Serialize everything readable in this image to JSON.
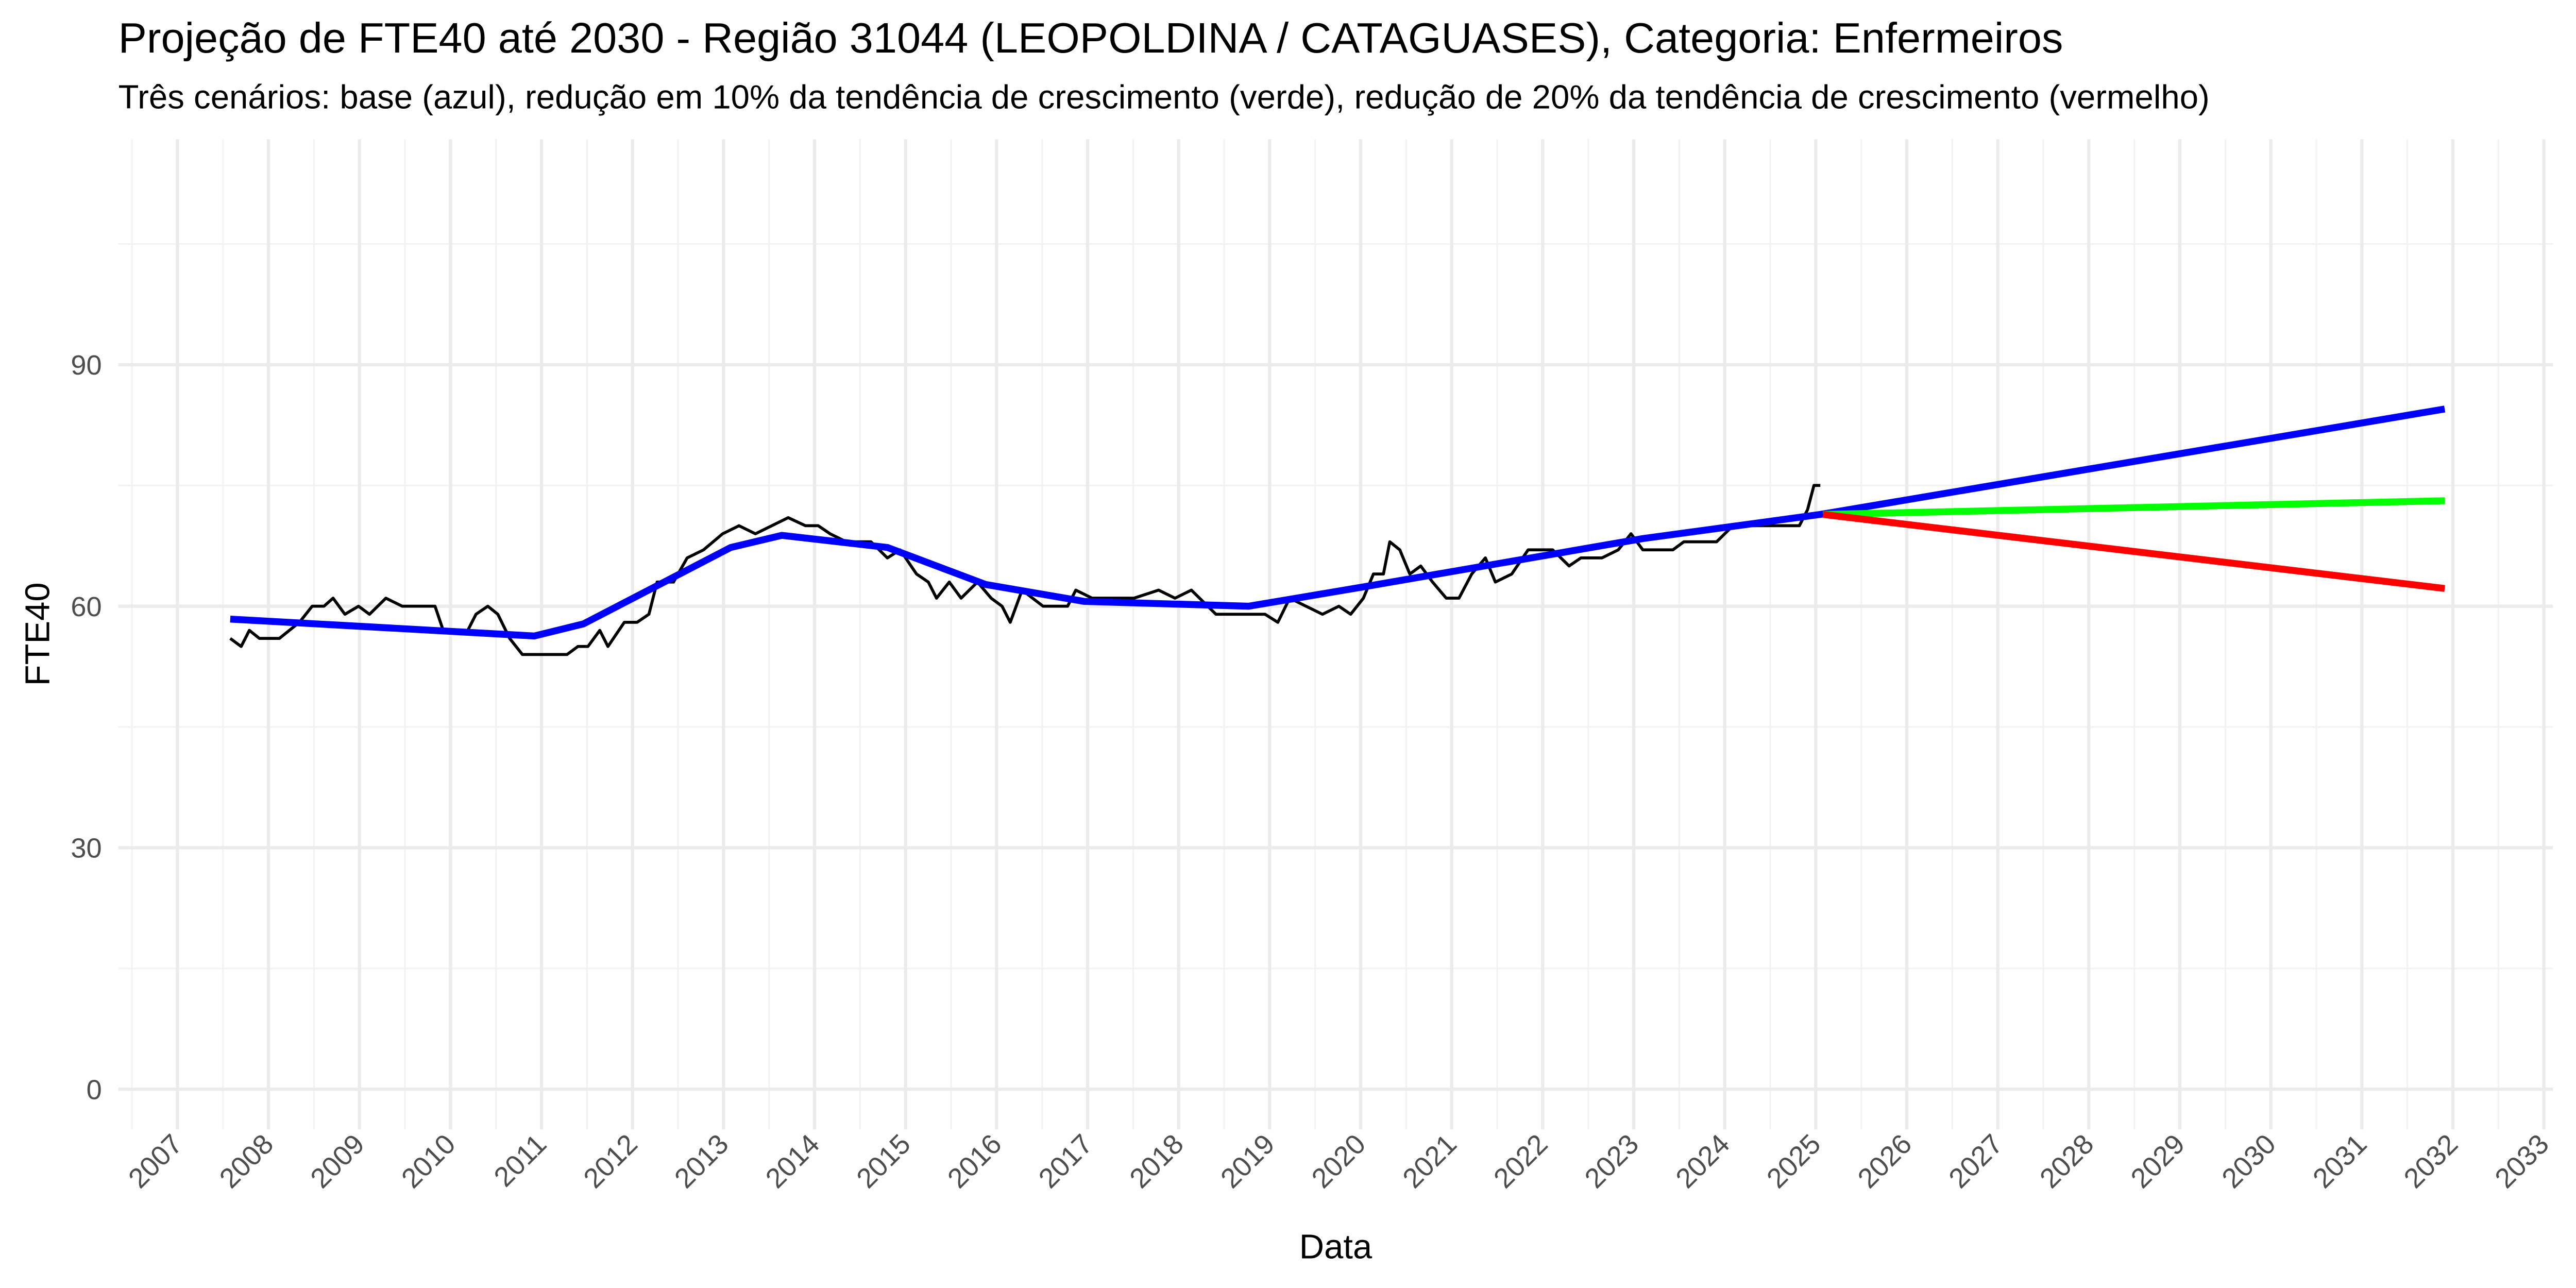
{
  "chart_data": {
    "type": "line",
    "title": "Projeção de FTE40 até 2030 - Região 31044 (LEOPOLDINA / CATAGUASES), Categoria: Enfermeiros",
    "subtitle": "Três cenários: base (azul), redução em 10% da tendência de crescimento (verde), redução de 20% da tendência de crescimento (vermelho)",
    "x_label": "Data",
    "y_label": "FTE40",
    "xlim": [
      2006.35,
      2033.1
    ],
    "xticks": [
      2007,
      2008,
      2009,
      2010,
      2011,
      2012,
      2013,
      2014,
      2015,
      2016,
      2017,
      2018,
      2019,
      2020,
      2021,
      2022,
      2023,
      2024,
      2025,
      2026,
      2027,
      2028,
      2029,
      2030,
      2031,
      2032,
      2033
    ],
    "ylim": [
      -5,
      118
    ],
    "yticks": [
      0,
      30,
      60,
      90
    ],
    "grid": true,
    "series": [
      {
        "color": "#000000",
        "x": [
          2007.58,
          2007.7,
          2007.79,
          2007.9,
          2008.12,
          2008.34,
          2008.48,
          2008.61,
          2008.71,
          2008.84,
          2008.99,
          2009.11,
          2009.29,
          2009.47,
          2009.83,
          2009.92,
          2010.19,
          2010.28,
          2010.41,
          2010.52,
          2010.65,
          2010.79,
          2011.28,
          2011.4,
          2011.51,
          2011.64,
          2011.73,
          2011.91,
          2012.05,
          2012.18,
          2012.27,
          2012.45,
          2012.6,
          2012.78,
          2012.99,
          2013.17,
          2013.35,
          2013.53,
          2013.71,
          2013.9,
          2014.04,
          2014.17,
          2014.35,
          2014.62,
          2014.8,
          2014.94,
          2015.12,
          2015.25,
          2015.34,
          2015.48,
          2015.61,
          2015.79,
          2015.94,
          2016.06,
          2016.15,
          2016.28,
          2016.51,
          2016.78,
          2016.87,
          2017.05,
          2017.51,
          2017.78,
          2017.96,
          2018.14,
          2018.41,
          2018.95,
          2019.09,
          2019.22,
          2019.4,
          2019.58,
          2019.76,
          2019.89,
          2020.03,
          2020.14,
          2020.25,
          2020.32,
          2020.43,
          2020.54,
          2020.66,
          2020.79,
          2020.94,
          2021.08,
          2021.22,
          2021.37,
          2021.48,
          2021.66,
          2021.84,
          2022.11,
          2022.29,
          2022.42,
          2022.65,
          2022.83,
          2022.97,
          2023.1,
          2023.43,
          2023.55,
          2023.91,
          2024.09,
          2024.45,
          2024.82,
          2024.91,
          2024.98,
          2025.05
        ],
        "values": [
          56,
          55,
          57,
          56,
          56,
          58,
          60,
          60,
          61,
          59,
          60,
          59,
          61,
          60,
          60,
          57,
          57,
          59,
          60,
          59,
          56,
          54,
          54,
          55,
          55,
          57,
          55,
          58,
          58,
          59,
          63,
          63,
          66,
          67,
          69,
          70,
          69,
          70,
          71,
          70,
          70,
          69,
          68,
          68,
          66,
          67,
          64,
          63,
          61,
          63,
          61,
          63,
          61,
          60,
          58,
          62,
          60,
          60,
          62,
          61,
          61,
          62,
          61,
          62,
          59,
          59,
          58,
          61,
          60,
          59,
          60,
          59,
          61,
          64,
          64,
          68,
          67,
          64,
          65,
          63,
          61,
          61,
          64,
          66,
          63,
          64,
          67,
          67,
          65,
          66,
          66,
          67,
          69,
          67,
          67,
          68,
          68,
          70,
          70,
          70,
          72,
          75,
          75
        ]
      },
      {
        "color": "#0000ff",
        "x": [
          2007.58,
          2010.92,
          2011.46,
          2013.08,
          2013.64,
          2014.8,
          2015.88,
          2016.96,
          2018.77,
          2020.03,
          2023.1,
          2025.05,
          2031.91
        ],
        "values": [
          58.4,
          56.3,
          57.8,
          67.3,
          68.8,
          67.3,
          62.7,
          60.6,
          60.0,
          62.4,
          68.4,
          71.4,
          84.5
        ]
      },
      {
        "color": "#00ff00",
        "x": [
          2025.08,
          2031.91
        ],
        "values": [
          71.4,
          73.1
        ]
      },
      {
        "color": "#ff0000",
        "x": [
          2025.08,
          2031.91
        ],
        "values": [
          71.4,
          62.2
        ]
      }
    ]
  }
}
